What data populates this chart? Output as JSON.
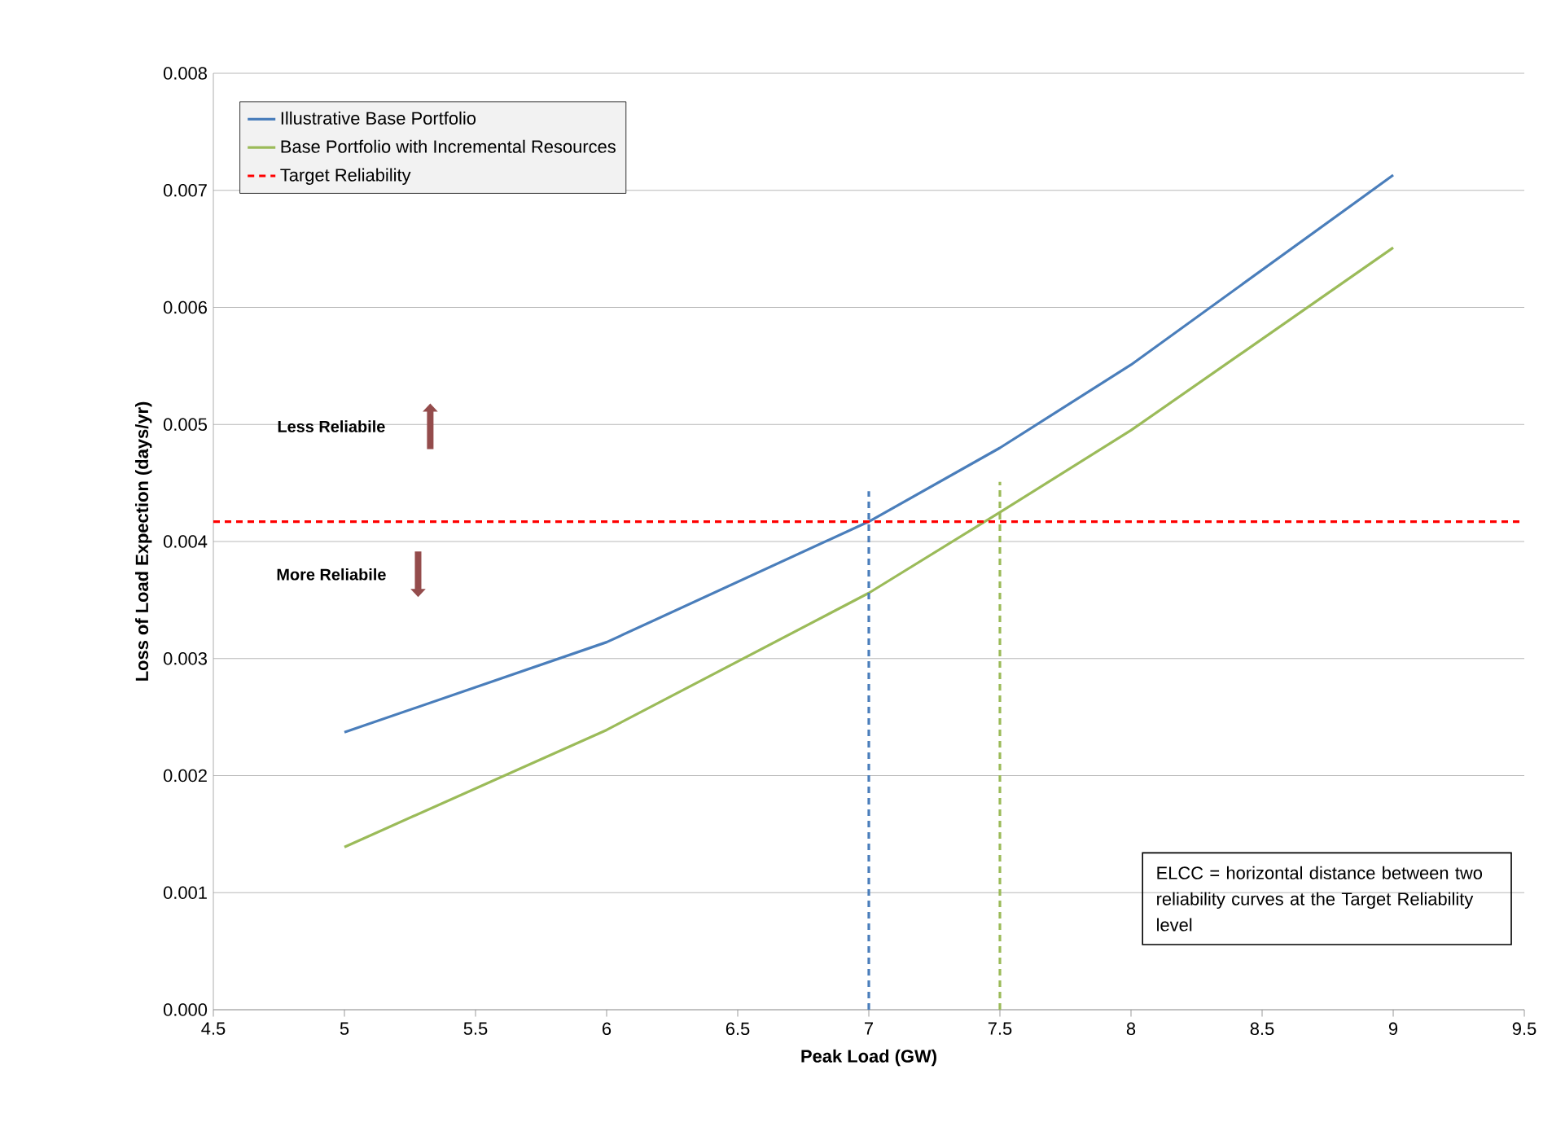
{
  "chart_data": {
    "type": "line",
    "xlabel": "Peak Load (GW)",
    "ylabel": "Loss of Load Expection (days/yr)",
    "xlim": [
      4.5,
      9.5
    ],
    "xticks": [
      4.5,
      5,
      5.5,
      6,
      6.5,
      7,
      7.5,
      8,
      8.5,
      9,
      9.5
    ],
    "ylim": [
      0,
      0.008
    ],
    "yticks": [
      {
        "value": 0,
        "label": "0.000"
      },
      {
        "value": 0.001,
        "label": "0.001"
      },
      {
        "value": 0.002,
        "label": "0.002"
      },
      {
        "value": 0.003,
        "label": "0.003"
      },
      {
        "value": 0.004,
        "label": "0.004"
      },
      {
        "value": 0.005,
        "label": "0.005"
      },
      {
        "value": 0.006,
        "label": "0.006"
      },
      {
        "value": 0.007,
        "label": "0.007"
      },
      {
        "value": 0.008,
        "label": "0.008"
      }
    ],
    "grid": "y",
    "legend": "top left",
    "marker": "none",
    "series": [
      {
        "name": "Illustrative Base Portfolio",
        "color": "#4a7ebb",
        "x": [
          5,
          6,
          7,
          7.5,
          8,
          9
        ],
        "values": [
          0.00237,
          0.00314,
          0.00417,
          0.0048,
          0.00551,
          0.00713
        ]
      },
      {
        "name": "Base Portfolio with Incremental Resources",
        "color": "#9bbb59",
        "x": [
          5,
          6,
          7,
          7.5,
          8,
          9
        ],
        "values": [
          0.00139,
          0.00239,
          0.00356,
          0.00425,
          0.00495,
          0.00651
        ]
      },
      {
        "color": "#4a7ebb",
        "line_style": "dashed",
        "x": [
          7,
          7
        ],
        "values": [
          0,
          0.00443
        ]
      },
      {
        "color": "#9bbb59",
        "line_style": "dashed",
        "x": [
          7.5,
          7.5
        ],
        "values": [
          0,
          0.00451
        ]
      }
    ],
    "ref_lines": [
      {
        "axis": "y",
        "value": 0.00417,
        "label": "Target Reliability",
        "color": "#ff0000",
        "line_style": "dashed"
      }
    ],
    "annotations": [
      "Less Reliabile",
      "More Reliabile",
      "ELCC = horizontal distance between two reliability curves at the Target Reliability level"
    ]
  }
}
